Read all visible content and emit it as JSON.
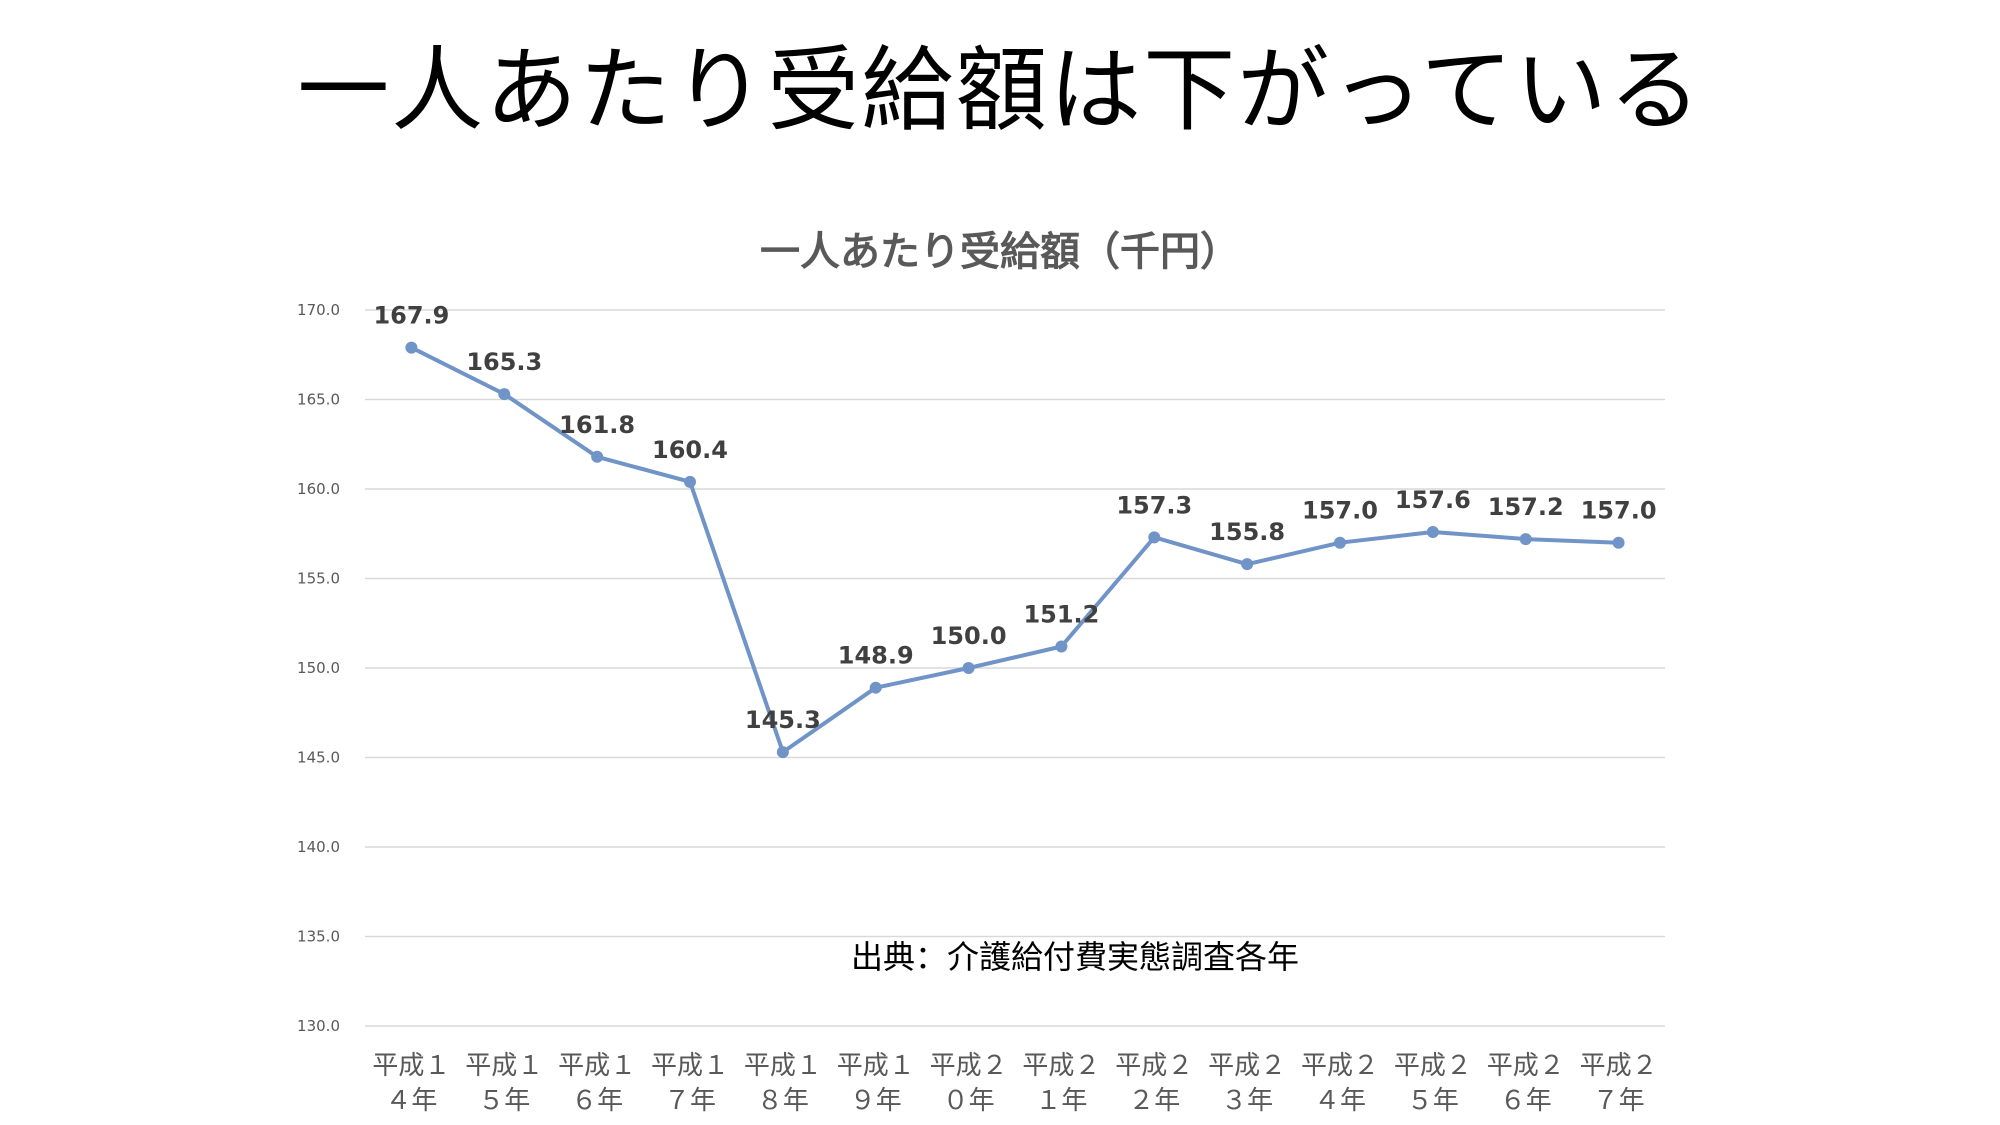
{
  "slide": {
    "title": "一人あたり受給額は下がっている"
  },
  "chart_data": {
    "type": "line",
    "title": "一人あたり受給額（千円）",
    "categories": [
      [
        "平成１",
        "４年"
      ],
      [
        "平成１",
        "５年"
      ],
      [
        "平成１",
        "６年"
      ],
      [
        "平成１",
        "７年"
      ],
      [
        "平成１",
        "８年"
      ],
      [
        "平成１",
        "９年"
      ],
      [
        "平成２",
        "０年"
      ],
      [
        "平成２",
        "１年"
      ],
      [
        "平成２",
        "２年"
      ],
      [
        "平成２",
        "３年"
      ],
      [
        "平成２",
        "４年"
      ],
      [
        "平成２",
        "５年"
      ],
      [
        "平成２",
        "６年"
      ],
      [
        "平成２",
        "７年"
      ]
    ],
    "values": [
      167.9,
      165.3,
      161.8,
      160.4,
      145.3,
      148.9,
      150.0,
      151.2,
      157.3,
      155.8,
      157.0,
      157.6,
      157.2,
      157.0
    ],
    "data_labels": [
      "167.9",
      "165.3",
      "161.8",
      "160.4",
      "145.3",
      "148.9",
      "150.0",
      "151.2",
      "157.3",
      "155.8",
      "157.0",
      "157.6",
      "157.2",
      "157.0"
    ],
    "ylim": [
      130,
      170
    ],
    "yticks": [
      130,
      135,
      140,
      145,
      150,
      155,
      160,
      165,
      170
    ],
    "ytick_labels": [
      "130.0",
      "135.0",
      "140.0",
      "145.0",
      "150.0",
      "155.0",
      "160.0",
      "165.0",
      "170.0"
    ],
    "grid": true,
    "legend": "none",
    "annotation": "出典：介護給付費実態調査各年",
    "colors": {
      "line": "#7094C8",
      "grid": "#D9D9D9",
      "text": "#595959"
    }
  }
}
